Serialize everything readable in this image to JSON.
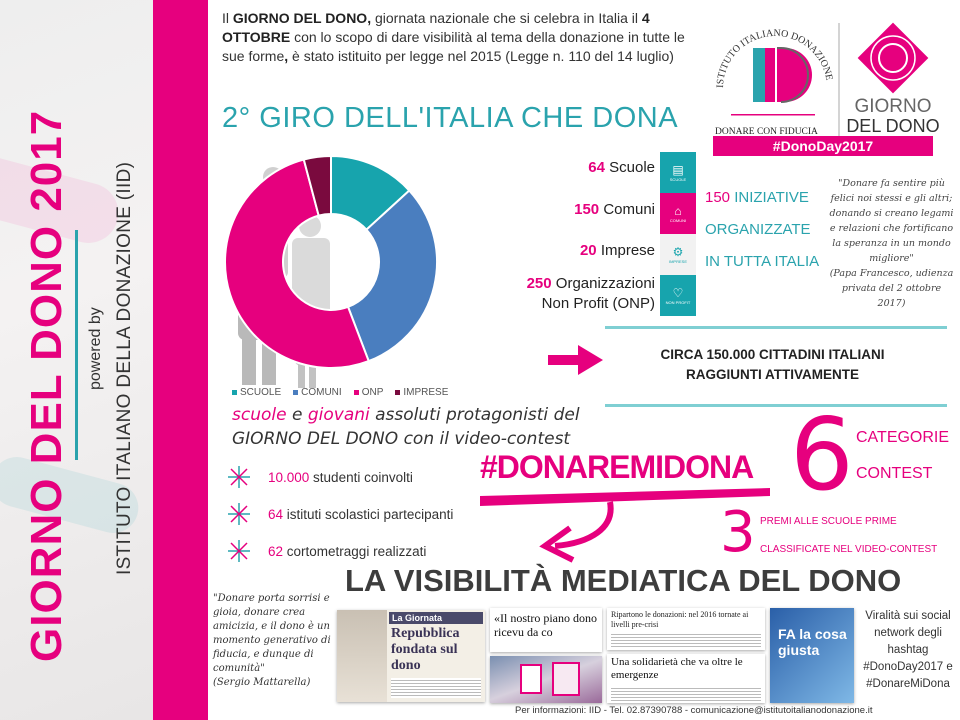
{
  "sidebar": {
    "title": "GIORNO DEL DONO 2017",
    "powered_by": "powered by",
    "institute": "ISTITUTO ITALIANO DELLA DONAZIONE (IID)"
  },
  "intro": {
    "p1": "Il ",
    "b1": "GIORNO DEL DONO,",
    "p2": " giornata nazionale che si celebra in Italia il ",
    "b2": "4 OTTOBRE",
    "p3": " con lo scopo di dare visibilità al tema della donazione in tutte le sue forme",
    "b3": ",",
    "p4": " è stato istituito per legge nel 2015 (Legge n. 110 del 14 luglio)"
  },
  "logo": {
    "arc_text": "ISTITUTO ITALIANO DONAZIONE",
    "monogram": "ID",
    "tagline": "DONARE CON FIDUCIA",
    "giorno": "GIORNO",
    "deldono": "DEL DONO",
    "hashtag": "#DonoDay2017"
  },
  "giro_title": "2° GIRO DELL'ITALIA CHE DONA",
  "chart_data": {
    "type": "pie",
    "donut": true,
    "categories": [
      "SCUOLE",
      "COMUNI",
      "ONP",
      "IMPRESE"
    ],
    "values": [
      64,
      150,
      250,
      20
    ],
    "colors": [
      "#17a4ad",
      "#4a7ebf",
      "#e6007e",
      "#7a0a3e"
    ],
    "legend": "bottom"
  },
  "stats": [
    {
      "num": "64",
      "label": "Scuole"
    },
    {
      "num": "150",
      "label": "Comuni"
    },
    {
      "num": "20",
      "label": "Imprese"
    },
    {
      "num": "250",
      "label": "Organizzazioni",
      "label2": "Non Profit (ONP)"
    }
  ],
  "tiles": [
    {
      "icon": "book-icon",
      "label": "SCUOLE",
      "color": "#17a4ad"
    },
    {
      "icon": "town-hall-icon",
      "label": "COMUNI",
      "color": "#e6007e"
    },
    {
      "icon": "gears-icon",
      "label": "IMPRESE",
      "color": "#f2f2f2"
    },
    {
      "icon": "heart-icon",
      "label": "NON PROFIT",
      "color": "#17a4ad"
    }
  ],
  "iniziative": {
    "num": "150",
    "l1": " INIZIATIVE",
    "l2": "ORGANIZZATE",
    "l3": "IN TUTTA ITALIA"
  },
  "papa_quote": {
    "text": "\"Donare fa sentire più felici noi stessi e gli altri; donando si creano legami e relazioni che fortificano la speranza in un mondo migliore\"",
    "source": "(Papa Francesco, udienza privata del 2 ottobre 2017)"
  },
  "circa": {
    "l1": "CIRCA 150.000 CITTADINI ITALIANI",
    "l2": "RAGGIUNTI ATTIVAMENTE"
  },
  "scuole": {
    "w1": "scuole",
    "w2": " e ",
    "w3": "giovani",
    "w4": " assoluti protagonisti del",
    "l2a": "GIORNO DEL DONO",
    "l2b": " con il video-contest"
  },
  "bullets": [
    {
      "num": "10.000",
      "text": " studenti coinvolti"
    },
    {
      "num": "64",
      "text": " istituti scolastici partecipanti"
    },
    {
      "num": "62",
      "text": " cortometraggi realizzati"
    }
  ],
  "hashtag_contest": "#DONAREMIDONA",
  "categorie": {
    "num": "6",
    "l1": "CATEGORIE",
    "l2": "CONTEST"
  },
  "premi": {
    "num": "3",
    "l1": "PREMI ALLE SCUOLE PRIME",
    "l2": "CLASSIFICATE NEL VIDEO-CONTEST"
  },
  "visibilita_title": "LA VISIBILITÀ MEDIATICA DEL DONO",
  "mattarella_quote": {
    "text": "\"Donare porta sorrisi e gioia, donare crea amicizia, e il dono è un momento generativo di fiducia, e dunque di comunità\"",
    "source": "(Sergio Mattarella)"
  },
  "press": {
    "c1_kicker": "La Giornata",
    "c1_head": "Repubblica fondata sul dono",
    "c2_head": "«Il nostro piano dono ricevu da co",
    "c3_top": "Ripartono le donazioni: nel 2016 tornate ai livelli pre-crisi",
    "c3_head": "Una solidarietà che va oltre le emergenze",
    "c4_head": "FA la cosa giusta"
  },
  "viral": "Viralità sui social network degli hashtag #DonoDay2017 e #DonareMiDona",
  "footer": "Per informazioni: IID - Tel. 02.87390788 - comunicazione@istitutoitalianodonazione.it"
}
